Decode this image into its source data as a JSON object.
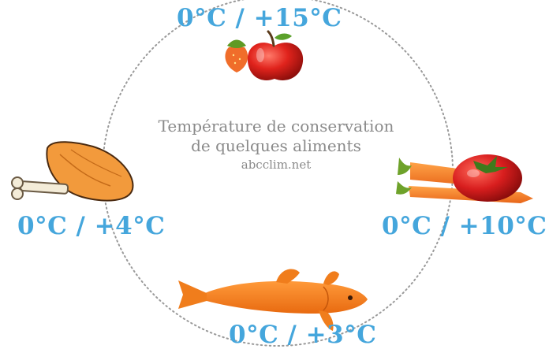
{
  "center": {
    "title_line1": "Température de conservation",
    "title_line2": "de quelques aliments",
    "website": "abcclim.net"
  },
  "labels": {
    "fruits": "0°C / +15°C",
    "meat": "0°C / +4°C",
    "vegetables": "0°C / +10°C",
    "fish": "0°C / +3°C"
  },
  "colors": {
    "temperature_text": "#45a6dc",
    "circle": "#9a9a9a",
    "center_text": "#8a8a8a",
    "orange": "#f07d1c",
    "red": "#d81e1e"
  },
  "icons": {
    "fruits": "apple-strawberry-icon",
    "meat": "chicken-leg-icon",
    "vegetables": "tomato-carrot-icon",
    "fish": "fish-icon"
  }
}
